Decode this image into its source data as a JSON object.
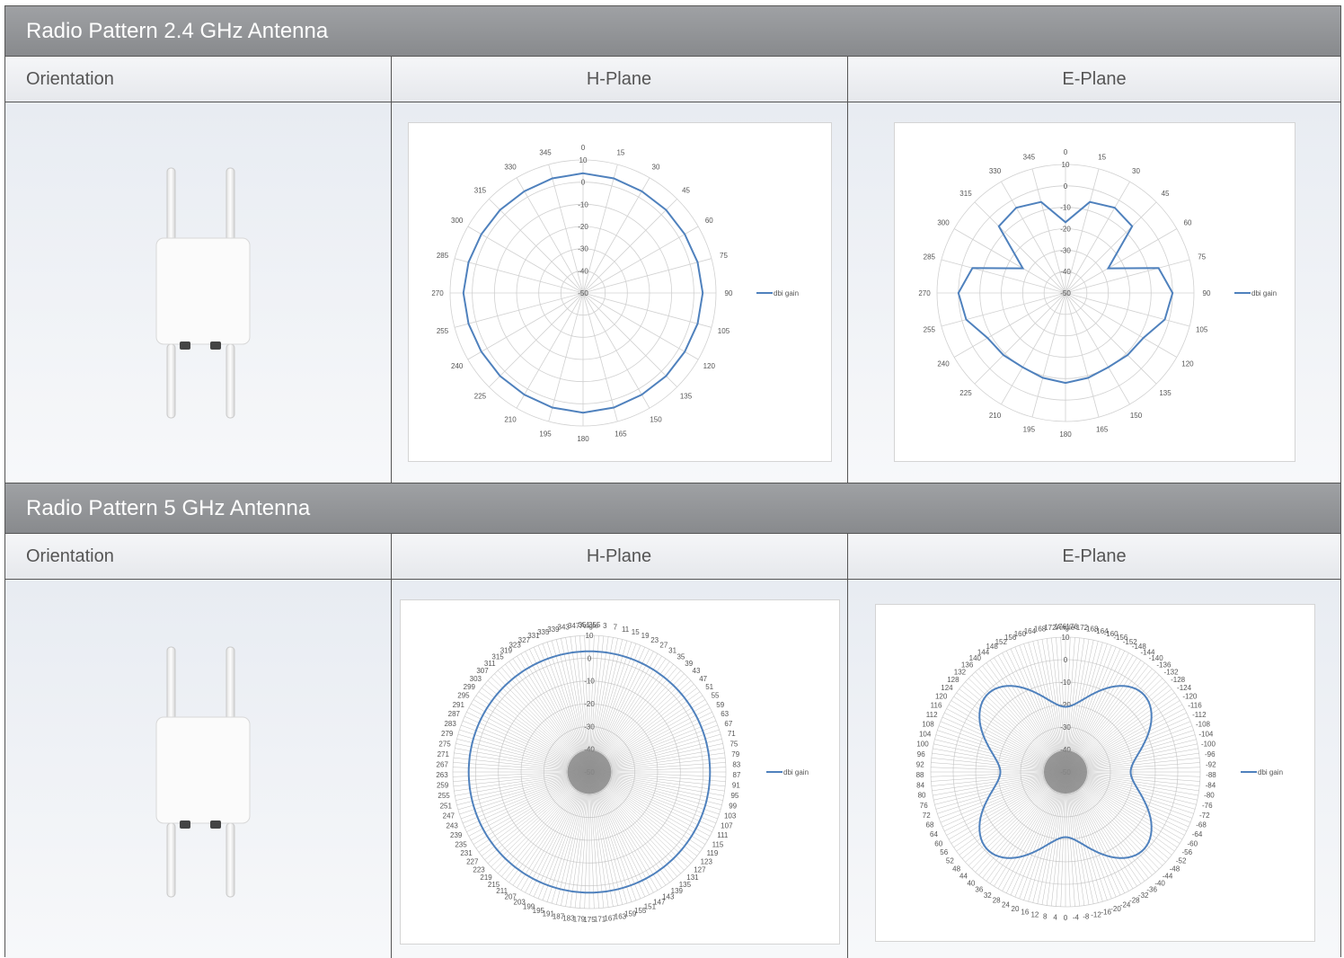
{
  "sections": [
    {
      "title": "Radio Pattern 2.4 GHz Antenna",
      "columns": [
        "Orientation",
        "H-Plane",
        "E-Plane"
      ]
    },
    {
      "title": "Radio Pattern 5 GHz Antenna",
      "columns": [
        "Orientation",
        "H-Plane",
        "E-Plane"
      ]
    }
  ],
  "colors": {
    "header_bg": "#8e9093",
    "series": "#4f81bd",
    "grid": "#d0d0d0"
  },
  "chart_data": [
    {
      "type": "polar-line",
      "panel": "2.4 GHz H-Plane",
      "radial_ticks": [
        "10",
        "0",
        "-10",
        "-20",
        "-30",
        "-40",
        "-50"
      ],
      "rlim": [
        -50,
        10
      ],
      "angle_labels": [
        "0",
        "15",
        "30",
        "45",
        "60",
        "75",
        "90",
        "105",
        "120",
        "135",
        "150",
        "165",
        "180",
        "195",
        "210",
        "225",
        "240",
        "255",
        "270",
        "285",
        "300",
        "315",
        "330",
        "345"
      ],
      "legend": "dbi gain",
      "series": [
        {
          "name": "dbi gain",
          "angles": [
            0,
            15,
            30,
            45,
            60,
            75,
            90,
            105,
            120,
            135,
            150,
            165,
            180,
            195,
            210,
            225,
            240,
            255,
            270,
            285,
            300,
            315,
            330,
            345
          ],
          "values": [
            4,
            3.5,
            3,
            3,
            3,
            3.5,
            4,
            3.5,
            3,
            3,
            3,
            3.5,
            4,
            3.5,
            3,
            3,
            3,
            3.5,
            4,
            3.5,
            3,
            3,
            3,
            3.5
          ]
        }
      ]
    },
    {
      "type": "polar-line",
      "panel": "2.4 GHz E-Plane",
      "radial_ticks": [
        "10",
        "0",
        "-10",
        "-20",
        "-30",
        "-40",
        "-50"
      ],
      "rlim": [
        -50,
        10
      ],
      "angle_labels": [
        "0",
        "15",
        "30",
        "45",
        "60",
        "75",
        "90",
        "105",
        "120",
        "135",
        "150",
        "165",
        "180",
        "195",
        "210",
        "225",
        "240",
        "255",
        "270",
        "285",
        "300",
        "315",
        "330",
        "345"
      ],
      "legend": "dbi gain",
      "series": [
        {
          "name": "dbi gain",
          "angles": [
            0,
            15,
            30,
            45,
            60,
            75,
            90,
            105,
            120,
            135,
            150,
            165,
            180,
            195,
            210,
            225,
            240,
            255,
            270,
            285,
            300,
            315,
            330,
            345
          ],
          "values": [
            -17,
            -6,
            -4,
            -6,
            -27,
            -5,
            0,
            -2,
            -8,
            -9,
            -10,
            -9,
            -8,
            -9,
            -10,
            -9,
            -8,
            -2,
            0,
            -5,
            -27,
            -6,
            -4,
            -6
          ]
        }
      ]
    },
    {
      "type": "polar-line",
      "panel": "5 GHz H-Plane",
      "radial_ticks": [
        "10",
        "0",
        "-10",
        "-20",
        "-30",
        "-40",
        "-50"
      ],
      "rlim": [
        -50,
        10
      ],
      "angle_title": "Angle",
      "angle_labels": [
        "355",
        "3",
        "7",
        "11",
        "15",
        "19",
        "23",
        "27",
        "31",
        "35",
        "39",
        "43",
        "47",
        "51",
        "55",
        "59",
        "63",
        "67",
        "71",
        "75",
        "79",
        "83",
        "87",
        "91",
        "95",
        "99",
        "103",
        "107",
        "111",
        "115",
        "119",
        "123",
        "127",
        "131",
        "135",
        "139",
        "143",
        "147",
        "151",
        "155",
        "159",
        "163",
        "167",
        "171",
        "175",
        "179",
        "183",
        "187",
        "191",
        "195",
        "199",
        "203",
        "207",
        "211",
        "215",
        "219",
        "223",
        "227",
        "231",
        "235",
        "239",
        "243",
        "247",
        "251",
        "255",
        "259",
        "263",
        "267",
        "271",
        "275",
        "279",
        "283",
        "287",
        "291",
        "295",
        "299",
        "303",
        "307",
        "311",
        "315",
        "319",
        "323",
        "327",
        "331",
        "335",
        "339",
        "343",
        "347",
        "351"
      ],
      "legend": "dbi gain",
      "series": [
        {
          "name": "dbi gain",
          "shape": "circle",
          "value": 3
        }
      ]
    },
    {
      "type": "polar-line",
      "panel": "5 GHz E-Plane",
      "radial_ticks": [
        "10",
        "0",
        "-10",
        "-20",
        "-30",
        "-40",
        "-50"
      ],
      "rlim": [
        -50,
        10
      ],
      "angle_title": "Angle",
      "angle_labels": [
        "-176",
        "-172",
        "-168",
        "-164",
        "-160",
        "-156",
        "-152",
        "-148",
        "-144",
        "-140",
        "-136",
        "-132",
        "-128",
        "-124",
        "-120",
        "-116",
        "-112",
        "-108",
        "-104",
        "-100",
        "-96",
        "-92",
        "-88",
        "-84",
        "-80",
        "-76",
        "-72",
        "-68",
        "-64",
        "-60",
        "-56",
        "-52",
        "-48",
        "-44",
        "-40",
        "-36",
        "-32",
        "-28",
        "-24",
        "-20",
        "-16",
        "-12",
        "-8",
        "-4",
        "0",
        "4",
        "8",
        "12",
        "16",
        "20",
        "24",
        "28",
        "32",
        "36",
        "40",
        "44",
        "48",
        "52",
        "56",
        "60",
        "64",
        "68",
        "72",
        "76",
        "80",
        "84",
        "88",
        "92",
        "96",
        "100",
        "104",
        "108",
        "112",
        "116",
        "120",
        "124",
        "128",
        "132",
        "136",
        "140",
        "144",
        "148",
        "152",
        "156",
        "160",
        "164",
        "168",
        "172",
        "176"
      ],
      "legend": "dbi gain",
      "series": [
        {
          "name": "dbi gain",
          "shape": "four-lobe",
          "base": -11,
          "amplitude": 10
        }
      ]
    }
  ]
}
